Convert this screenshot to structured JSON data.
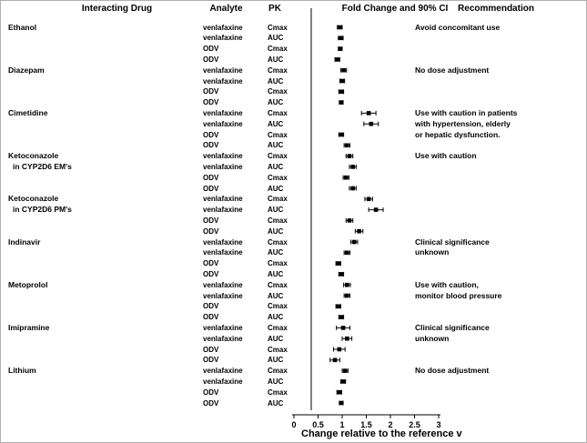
{
  "headers": {
    "drug": "Interacting Drug",
    "analyte": "Analyte",
    "pk": "PK",
    "plot": "Fold Change and 90% CI",
    "recommendation": "Recommendation"
  },
  "axis": {
    "label": "Change relative to the reference v",
    "tick_labels": [
      "0",
      "0.5",
      "1",
      "1.5",
      "2",
      "2.5",
      "3"
    ]
  },
  "chart_data": {
    "type": "forest",
    "title": "Fold Change and 90% CI",
    "xlabel": "Change relative to the reference v",
    "xlim": [
      0,
      3
    ],
    "xticks": [
      0,
      0.5,
      1,
      1.5,
      2,
      2.5,
      3
    ],
    "ci_level": "90% CI",
    "marker_color": "#000000",
    "groups": [
      {
        "drug": "Ethanol",
        "recommendation": [
          "Avoid concomitant use"
        ],
        "rows": [
          {
            "analyte": "venlafaxine",
            "pk": "Cmax",
            "est": 0.95,
            "lo": 0.9,
            "hi": 1.0
          },
          {
            "analyte": "venlafaxine",
            "pk": "AUC",
            "est": 0.97,
            "lo": 0.92,
            "hi": 1.02
          },
          {
            "analyte": "ODV",
            "pk": "Cmax",
            "est": 0.96,
            "lo": 0.92,
            "hi": 1.0
          },
          {
            "analyte": "ODV",
            "pk": "AUC",
            "est": 0.9,
            "lo": 0.85,
            "hi": 0.95
          }
        ]
      },
      {
        "drug": "Diazepam",
        "recommendation": [
          "No dose adjustment"
        ],
        "rows": [
          {
            "analyte": "venlafaxine",
            "pk": "Cmax",
            "est": 1.03,
            "lo": 0.97,
            "hi": 1.09
          },
          {
            "analyte": "venlafaxine",
            "pk": "AUC",
            "est": 1.0,
            "lo": 0.95,
            "hi": 1.05
          },
          {
            "analyte": "ODV",
            "pk": "Cmax",
            "est": 0.98,
            "lo": 0.93,
            "hi": 1.03
          },
          {
            "analyte": "ODV",
            "pk": "AUC",
            "est": 0.98,
            "lo": 0.94,
            "hi": 1.02
          }
        ]
      },
      {
        "drug": "Cimetidine",
        "recommendation": [
          "Use with caution in patients",
          "with hypertension, elderly",
          "or hepatic dysfunction."
        ],
        "rows": [
          {
            "analyte": "venlafaxine",
            "pk": "Cmax",
            "est": 1.55,
            "lo": 1.4,
            "hi": 1.7
          },
          {
            "analyte": "venlafaxine",
            "pk": "AUC",
            "est": 1.6,
            "lo": 1.45,
            "hi": 1.75
          },
          {
            "analyte": "ODV",
            "pk": "Cmax",
            "est": 0.98,
            "lo": 0.93,
            "hi": 1.03
          },
          {
            "analyte": "ODV",
            "pk": "AUC",
            "est": 1.1,
            "lo": 1.04,
            "hi": 1.16
          }
        ]
      },
      {
        "drug": "Ketoconazole",
        "drug_line2": "in CYP2D6 EM's",
        "recommendation": [
          "Use with caution"
        ],
        "rows": [
          {
            "analyte": "venlafaxine",
            "pk": "Cmax",
            "est": 1.15,
            "lo": 1.08,
            "hi": 1.22
          },
          {
            "analyte": "venlafaxine",
            "pk": "AUC",
            "est": 1.22,
            "lo": 1.15,
            "hi": 1.29
          },
          {
            "analyte": "ODV",
            "pk": "Cmax",
            "est": 1.08,
            "lo": 1.02,
            "hi": 1.14
          },
          {
            "analyte": "ODV",
            "pk": "AUC",
            "est": 1.22,
            "lo": 1.15,
            "hi": 1.29
          }
        ]
      },
      {
        "drug": "Ketoconazole",
        "drug_line2": "in CYP2D6 PM's",
        "recommendation": [],
        "rows": [
          {
            "analyte": "venlafaxine",
            "pk": "Cmax",
            "est": 1.55,
            "lo": 1.47,
            "hi": 1.63
          },
          {
            "analyte": "venlafaxine",
            "pk": "AUC",
            "est": 1.7,
            "lo": 1.55,
            "hi": 1.85
          },
          {
            "analyte": "ODV",
            "pk": "Cmax",
            "est": 1.15,
            "lo": 1.08,
            "hi": 1.22
          },
          {
            "analyte": "ODV",
            "pk": "AUC",
            "est": 1.35,
            "lo": 1.27,
            "hi": 1.43
          }
        ]
      },
      {
        "drug": "Indinavir",
        "recommendation": [
          "Clinical significance",
          "unknown"
        ],
        "rows": [
          {
            "analyte": "venlafaxine",
            "pk": "Cmax",
            "est": 1.25,
            "lo": 1.18,
            "hi": 1.32
          },
          {
            "analyte": "venlafaxine",
            "pk": "AUC",
            "est": 1.1,
            "lo": 1.04,
            "hi": 1.16
          },
          {
            "analyte": "ODV",
            "pk": "Cmax",
            "est": 0.92,
            "lo": 0.87,
            "hi": 0.97
          },
          {
            "analyte": "ODV",
            "pk": "AUC",
            "est": 0.98,
            "lo": 0.93,
            "hi": 1.03
          }
        ]
      },
      {
        "drug": "Metoprolol",
        "recommendation": [
          "Use with caution,",
          "monitor blood pressure"
        ],
        "rows": [
          {
            "analyte": "venlafaxine",
            "pk": "Cmax",
            "est": 1.1,
            "lo": 1.03,
            "hi": 1.17
          },
          {
            "analyte": "venlafaxine",
            "pk": "AUC",
            "est": 1.1,
            "lo": 1.04,
            "hi": 1.16
          },
          {
            "analyte": "ODV",
            "pk": "Cmax",
            "est": 0.92,
            "lo": 0.87,
            "hi": 0.97
          },
          {
            "analyte": "ODV",
            "pk": "AUC",
            "est": 0.98,
            "lo": 0.93,
            "hi": 1.03
          }
        ]
      },
      {
        "drug": "Imipramine",
        "recommendation": [
          "Clinical significance",
          "unknown"
        ],
        "rows": [
          {
            "analyte": "venlafaxine",
            "pk": "Cmax",
            "est": 1.02,
            "lo": 0.88,
            "hi": 1.16
          },
          {
            "analyte": "venlafaxine",
            "pk": "AUC",
            "est": 1.1,
            "lo": 1.0,
            "hi": 1.2
          },
          {
            "analyte": "ODV",
            "pk": "Cmax",
            "est": 0.94,
            "lo": 0.82,
            "hi": 1.06
          },
          {
            "analyte": "ODV",
            "pk": "AUC",
            "est": 0.85,
            "lo": 0.75,
            "hi": 0.95
          }
        ]
      },
      {
        "drug": "Lithium",
        "recommendation": [
          "No dose adjustment"
        ],
        "rows": [
          {
            "analyte": "venlafaxine",
            "pk": "Cmax",
            "est": 1.06,
            "lo": 1.0,
            "hi": 1.12
          },
          {
            "analyte": "venlafaxine",
            "pk": "AUC",
            "est": 1.02,
            "lo": 0.97,
            "hi": 1.07
          },
          {
            "analyte": "ODV",
            "pk": "Cmax",
            "est": 0.94,
            "lo": 0.89,
            "hi": 0.99
          },
          {
            "analyte": "ODV",
            "pk": "AUC",
            "est": 0.98,
            "lo": 0.94,
            "hi": 1.02
          }
        ]
      }
    ]
  }
}
